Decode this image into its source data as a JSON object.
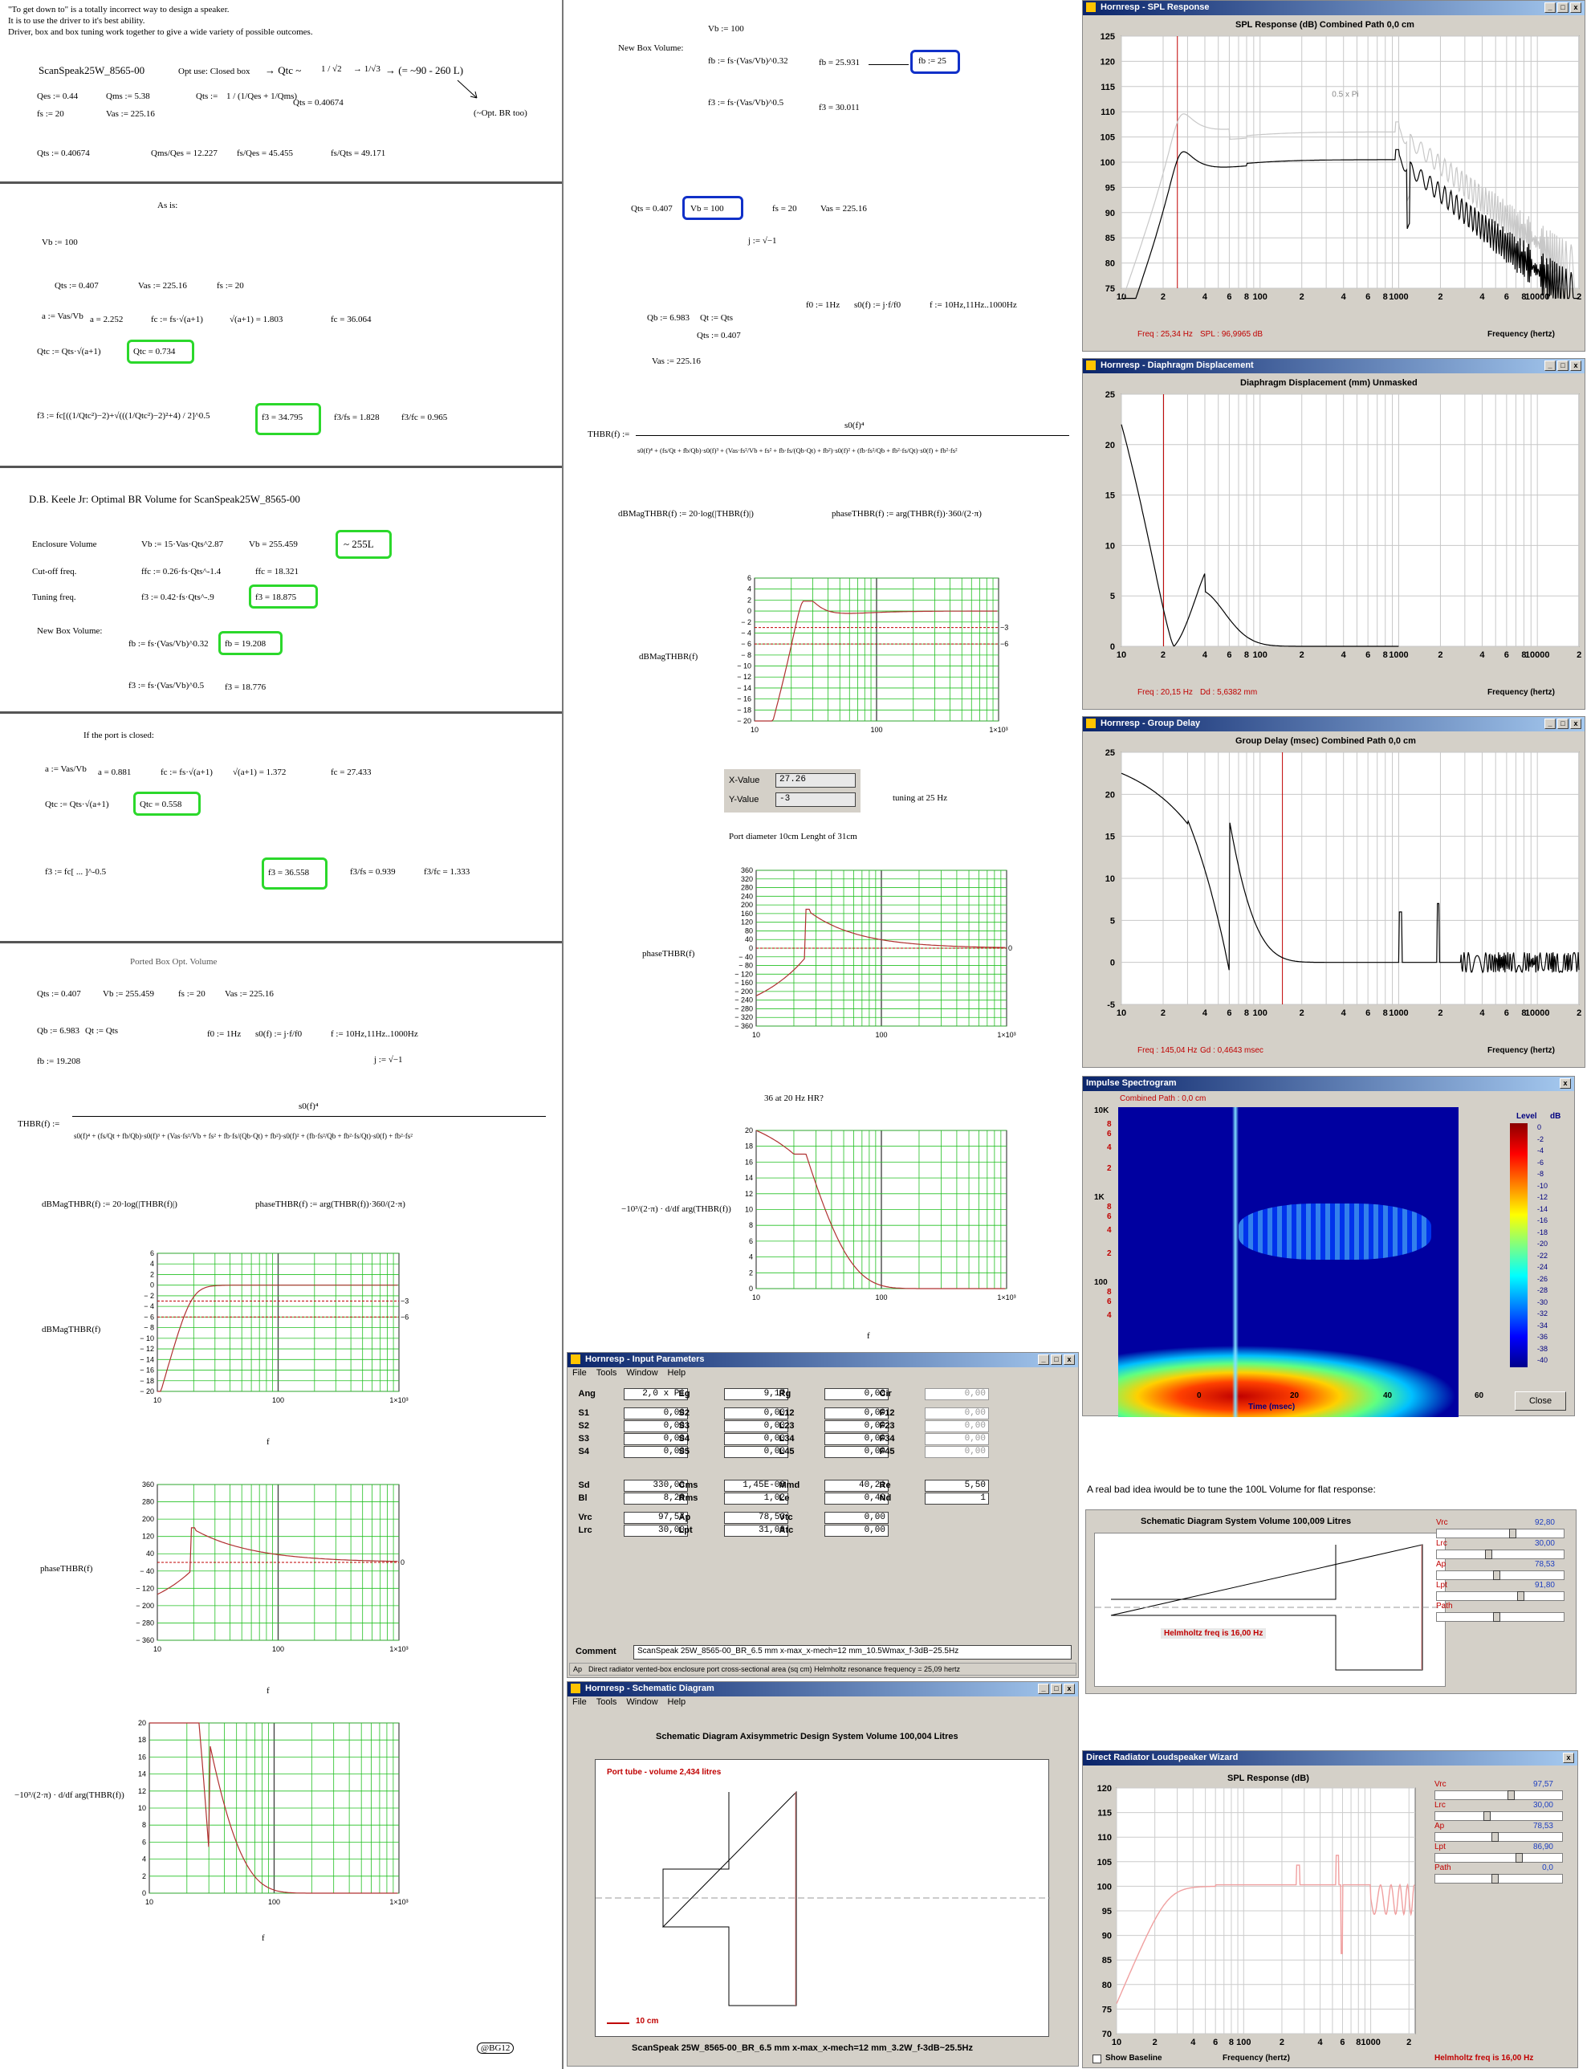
{
  "col1": {
    "intro": [
      "\"To get down to\" is a totally incorrect way to design a speaker.",
      "It is to use the driver to it's best ability.",
      "Driver, box and box tuning work together to give a wide variety of possible outcomes."
    ],
    "driver": "ScanSpeak25W_8565-00",
    "opt_use": "Opt use: Closed box",
    "qtc_arrow": "→ Qtc ~",
    "frac1": "1 / √2",
    "frac2": "→ 1/√3",
    "range": "→ (= ~90 - 260 L)",
    "optbr": "(~Opt. BR too)",
    "qes": "Qes := 0.44",
    "qms": "Qms := 5.38",
    "qts_def": "Qts :=",
    "qts_frac": "1 / (1/Qes + 1/Qms)",
    "qts_val": "Qts = 0.40674",
    "fs": "fs := 20",
    "vas": "Vas := 225.16",
    "qts_line": "Qts := 0.40674",
    "r1": "Qms/Qes = 12.227",
    "r2": "fs/Qes = 45.455",
    "r3": "fs/Qts = 49.171",
    "as_is": "As is:",
    "vb": "Vb := 100",
    "qts2": "Qts := 0.407",
    "vas2": "Vas := 225.16",
    "fs2": "fs := 20",
    "a_def": "a := Vas/Vb",
    "a_val": "a = 2.252",
    "fc_def": "fc := fs·√(a+1)",
    "sq": "√(a+1) = 1.803",
    "fc_val": "fc = 36.064",
    "qtc_def": "Qtc := Qts·√(a+1)",
    "qtc_val": "Qtc = 0.734",
    "f3_def": "f3 := fc[((1/Qtc²)−2)+√(((1/Qtc²)−2)²+4) / 2]^0.5",
    "f3_val": "f3 = 34.795",
    "f3fs": "f3/fs = 1.828",
    "f3fc": "f3/fc = 0.965",
    "keele": "D.B. Keele Jr:   Optimal BR Volume for ScanSpeak25W_8565-00",
    "enc": "Enclosure Volume",
    "enc_f": "Vb := 15·Vas·Qts^2.87",
    "enc_v": "Vb = 255.459",
    "enc_h": "~ 255L",
    "cut": "Cut-off freq.",
    "cut_f": "ffc := 0.26·fs·Qts^-1.4",
    "cut_v": "ffc = 18.321",
    "tune": "Tuning freq.",
    "tune_f": "f3 := 0.42·fs·Qts^-.9",
    "tune_v": "f3 = 18.875",
    "nbv": "New Box Volume:",
    "nbv_f": "fb := fs·(Vas/Vb)^0.32",
    "nbv_v": "fb = 19.208",
    "nbv_f3": "f3 := fs·(Vas/Vb)^0.5",
    "nbv_f3v": "f3 = 18.776",
    "closed": "If the port is closed:",
    "c_a": "a := Vas/Vb",
    "c_av": "a = 0.881",
    "c_fc": "fc := fs·√(a+1)",
    "c_sq": "√(a+1) = 1.372",
    "c_fcv": "fc = 27.433",
    "c_qtc": "Qtc := Qts·√(a+1)",
    "c_qtcv": "Qtc = 0.558",
    "c_f3": "f3 := fc[ ... ]^-0.5",
    "c_f3v": "f3 = 36.558",
    "c_f3fs": "f3/fs = 0.939",
    "c_f3fc": "f3/fc = 1.333",
    "ported": "Ported Box Opt. Volume",
    "p_qts": "Qts := 0.407",
    "p_vb": "Vb := 255.459",
    "p_fs": "fs := 20",
    "p_vas": "Vas := 225.16",
    "p_qb": "Qb := 6.983",
    "p_qt": "Qt := Qts",
    "p_f0": "f0 := 1Hz",
    "p_s0": "s0(f) := j·f/f0",
    "p_f": "f := 10Hz,11Hz..1000Hz",
    "p_fb": "fb := 19.208",
    "p_j": "j := √−1",
    "thbr": "THBR(f) :=",
    "thbr_num": "s0(f)⁴",
    "thbr_den": "s0(f)⁴ + (fs/Qt + fb/Qb)·s0(f)³ + (Vas·fs²/Vb + fs² + fb·fs/(Qb·Qt) + fb²)·s0(f)² + (fb·fs²/Qb + fb²·fs/Qt)·s0(f) + fb²·fs²",
    "dbm": "dBMagTHBR(f) := 20·log(|THBR(f)|)",
    "ph": "phaseTHBR(f) := arg(THBR(f))·360/(2·π)",
    "g1y": "dBMagTHBR(f)",
    "g2y": "phaseTHBR(f)",
    "g3y": "−10³/(2·π) · d/df arg(THBR(f))",
    "gx": "f",
    "footer": "@BG12"
  },
  "col2": {
    "vb": "Vb := 100",
    "nbv": "New Box Volume:",
    "fb_f": "fb := fs·(Vas/Vb)^0.32",
    "fb_v": "fb = 25.931",
    "fb_h": "fb := 25",
    "f3_f": "f3 := fs·(Vas/Vb)^0.5",
    "f3_v": "f3 = 30.011",
    "qts": "Qts = 0.407",
    "vb_h": "Vb = 100",
    "fs": "fs = 20",
    "vas": "Vas = 225.16",
    "j": "j := √−1",
    "f0": "f0 := 1Hz",
    "s0": "s0(f) := j·f/f0",
    "f": "f := 10Hz,11Hz..1000Hz",
    "qb": "Qb := 6.983",
    "qt": "Qt := Qts",
    "qts2": "Qts := 0.407",
    "vas2": "Vas := 225.16",
    "thbr": "THBR(f) :=",
    "thbr_num": "s0(f)⁴",
    "thbr_den": "s0(f)⁴ + (fs/Qt + fb/Qb)·s0(f)³ + (Vas·fs²/Vb + fs² + fb·fs/(Qb·Qt) + fb²)·s0(f)² + (fb·fs²/Qb + fb²·fs/Qt)·s0(f) + fb²·fs²",
    "dbm": "dBMagTHBR(f) := 20·log(|THBR(f)|)",
    "ph": "phaseTHBR(f) := arg(THBR(f))·360/(2·π)",
    "xv_l": "X-Value",
    "xv": "27.26",
    "yv_l": "Y-Value",
    "yv": "-3",
    "tuning": "tuning at 25 Hz",
    "port": "Port diameter 10cm Lenght of 31cm",
    "hr": "36 at 20  Hz    HR?"
  },
  "spl": {
    "title": "Hornresp - SPL Response",
    "ptitle": "SPL Response (dB)     Combined     Path 0,0 cm",
    "freq": "Freq : 25,34 Hz",
    "spl": "SPL : 96,9965 dB",
    "xlab": "Frequency (hertz)",
    "curve_label": "0.5 x Pi",
    "yticks": [
      "125",
      "120",
      "115",
      "110",
      "105",
      "100",
      "95",
      "90",
      "85",
      "80",
      "75"
    ]
  },
  "disp": {
    "title": "Hornresp - Diaphragm Displacement",
    "ptitle": "Diaphragm Displacement (mm)     Unmasked",
    "freq": "Freq : 20,15 Hz",
    "dd": "Dd : 5,6382 mm",
    "xlab": "Frequency (hertz)",
    "yticks": [
      "25",
      "20",
      "15",
      "10",
      "5",
      "0"
    ]
  },
  "gd": {
    "title": "Hornresp - Group Delay",
    "ptitle": "Group Delay (msec)     Combined     Path 0,0 cm",
    "freq": "Freq : 145,04 Hz",
    "gd": "Gd : 0,4643 msec",
    "xlab": "Frequency (hertz)",
    "yticks": [
      "25",
      "20",
      "15",
      "10",
      "5",
      "0",
      "-5"
    ]
  },
  "xticks": [
    "10",
    "2",
    "4",
    "6",
    "8",
    "100",
    "2",
    "4",
    "6",
    "8",
    "1000",
    "2",
    "4",
    "6",
    "8",
    "10000",
    "2"
  ],
  "spec": {
    "title": "Impulse Spectrogram",
    "sub": "Combined     Path : 0,0 cm",
    "level": "Level",
    "db": "dB",
    "levels": [
      "0",
      "-2",
      "-4",
      "-6",
      "-8",
      "-10",
      "-12",
      "-14",
      "-16",
      "-18",
      "-20",
      "-22",
      "-24",
      "-26",
      "-28",
      "-30",
      "-32",
      "-34",
      "-36",
      "-38",
      "-40"
    ],
    "yticks": [
      "10K",
      "8",
      "6",
      "4",
      "2",
      "1K",
      "8",
      "6",
      "4",
      "2",
      "100",
      "8",
      "6",
      "4"
    ],
    "xticks": [
      "0",
      "20",
      "40",
      "60"
    ],
    "xlab": "Time (msec)",
    "close": "Close"
  },
  "input": {
    "title": "Hornresp - Input Parameters",
    "menu": [
      "File",
      "Tools",
      "Window",
      "Help"
    ],
    "rows": [
      [
        [
          "Ang",
          "2,0 x Pi"
        ],
        [
          "Eg",
          "9,17"
        ],
        [
          "Rg",
          "0,00"
        ],
        [
          "Cir",
          "0,00"
        ]
      ],
      [
        [
          "S1",
          "0,00"
        ],
        [
          "S2",
          "0,00"
        ],
        [
          "L12",
          "0,00"
        ],
        [
          "F12",
          "0,00"
        ]
      ],
      [
        [
          "S2",
          "0,00"
        ],
        [
          "S3",
          "0,00"
        ],
        [
          "L23",
          "0,00"
        ],
        [
          "F23",
          "0,00"
        ]
      ],
      [
        [
          "S3",
          "0,00"
        ],
        [
          "S4",
          "0,00"
        ],
        [
          "L34",
          "0,00"
        ],
        [
          "F34",
          "0,00"
        ]
      ],
      [
        [
          "S4",
          "0,00"
        ],
        [
          "S5",
          "0,00"
        ],
        [
          "L45",
          "0,00"
        ],
        [
          "F45",
          "0,00"
        ]
      ],
      [
        [
          "Sd",
          "330,00"
        ],
        [
          "Cms",
          "1,45E-03"
        ],
        [
          "Mmd",
          "40,21"
        ],
        [
          "Re",
          "5,50"
        ]
      ],
      [
        [
          "Bl",
          "8,28"
        ],
        [
          "Rms",
          "1,02"
        ],
        [
          "Le",
          "0,40"
        ],
        [
          "Nd",
          "1"
        ]
      ],
      [
        [
          "Vrc",
          "97,57"
        ],
        [
          "Ap",
          "78,53"
        ],
        [
          "Vtc",
          "0,00"
        ],
        [
          "",
          ""
        ]
      ],
      [
        [
          "Lrc",
          "30,00"
        ],
        [
          "Lpt",
          "31,00"
        ],
        [
          "Atc",
          "0,00"
        ],
        [
          "",
          ""
        ]
      ]
    ],
    "comment_l": "Comment",
    "comment": "ScanSpeak 25W_8565-00_BR_6.5 mm x-max_x-mech=12 mm_10.5Wmax_f-3dB~25.5Hz",
    "status_ap": "Ap",
    "status": "Direct radiator vented-box enclosure port cross-sectional area  (sq cm)    Helmholtz resonance frequency = 25,09 hertz"
  },
  "schem": {
    "title": "Hornresp - Schematic Diagram",
    "menu": [
      "File",
      "Tools",
      "Window",
      "Help"
    ],
    "ptitle": "Schematic Diagram     Axisymmetric Design     System Volume 100,004 Litres",
    "port": "Port tube - volume 2,434 litres",
    "scale": "10 cm",
    "footer": "ScanSpeak 25W_8565-00_BR_6.5 mm x-max_x-mech=12 mm_3.2W_f-3dB~25.5Hz"
  },
  "note": "A real bad idea iwould be to tune the 100L Volume for flat response:",
  "schem2": {
    "ptitle": "Schematic Diagram     System Volume 100,009 Litres",
    "helm": "Helmholtz freq is 16,00 Hz",
    "sliders": [
      [
        "Vrc",
        "92,80"
      ],
      [
        "Lrc",
        "30,00"
      ],
      [
        "Ap",
        "78,53"
      ],
      [
        "Lpt",
        "91,80"
      ],
      [
        "Path",
        ""
      ]
    ]
  },
  "wizard": {
    "title": "Direct Radiator Loudspeaker Wizard",
    "ptitle": "SPL Response (dB)",
    "yticks": [
      "120",
      "115",
      "110",
      "105",
      "100",
      "95",
      "90",
      "85",
      "80",
      "75",
      "70"
    ],
    "xticks": [
      "10",
      "2",
      "4",
      "6",
      "8",
      "100",
      "2",
      "4",
      "6",
      "8",
      "1000",
      "2"
    ],
    "show": "Show Baseline",
    "xlab": "Frequency (hertz)",
    "helm": "Helmholtz freq is 16,00 Hz",
    "sliders": [
      [
        "Vrc",
        "97,57"
      ],
      [
        "Lrc",
        "30,00"
      ],
      [
        "Ap",
        "78,53"
      ],
      [
        "Lpt",
        "86,90"
      ],
      [
        "Path",
        "0,0"
      ]
    ]
  },
  "colors": {
    "green_highlight": "#2bd82b",
    "blue_highlight": "#1030c8",
    "graph_grid": "#22c022",
    "curve": "#b03030",
    "accent_red": "#c00000"
  }
}
